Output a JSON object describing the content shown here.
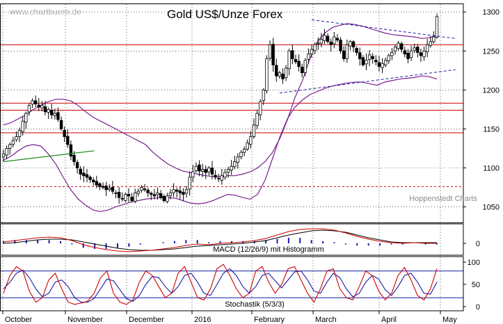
{
  "chart_data": {
    "type": "candlestick",
    "title": "Gold US$/Unze Forex",
    "watermark": "www.chartbuero.de",
    "source": "Hoppenstedt Charts",
    "x_ticks": [
      "October",
      "November",
      "December",
      "2016",
      "February",
      "March",
      "April",
      "May"
    ],
    "price_axis": {
      "ticks": [
        1050,
        1100,
        1150,
        1200,
        1250,
        1300
      ],
      "ylim": [
        1030,
        1310
      ]
    },
    "horizontal_lines": [
      {
        "value": 1258,
        "style": "solid",
        "color": "#cc0000"
      },
      {
        "value": 1183,
        "style": "solid",
        "color": "#cc0000"
      },
      {
        "value": 1174,
        "style": "solid",
        "color": "#cc0000"
      },
      {
        "value": 1145,
        "style": "solid",
        "color": "#cc0000"
      },
      {
        "value": 1076,
        "style": "dashed",
        "color": "#cc0000"
      }
    ],
    "closes": [
      1118,
      1125,
      1130,
      1135,
      1140,
      1148,
      1160,
      1170,
      1180,
      1186,
      1182,
      1178,
      1180,
      1172,
      1175,
      1168,
      1170,
      1162,
      1150,
      1140,
      1130,
      1115,
      1108,
      1100,
      1092,
      1090,
      1088,
      1085,
      1082,
      1078,
      1076,
      1075,
      1072,
      1074,
      1070,
      1068,
      1062,
      1060,
      1066,
      1064,
      1058,
      1068,
      1070,
      1075,
      1072,
      1068,
      1066,
      1064,
      1068,
      1062,
      1058,
      1064,
      1068,
      1072,
      1070,
      1068,
      1066,
      1072,
      1088,
      1095,
      1102,
      1096,
      1098,
      1094,
      1100,
      1092,
      1088,
      1086,
      1090,
      1094,
      1098,
      1102,
      1108,
      1114,
      1120,
      1124,
      1132,
      1140,
      1155,
      1170,
      1185,
      1200,
      1240,
      1258,
      1232,
      1218,
      1222,
      1214,
      1228,
      1250,
      1240,
      1236,
      1230,
      1222,
      1238,
      1246,
      1252,
      1258,
      1260,
      1265,
      1270,
      1262,
      1258,
      1268,
      1264,
      1250,
      1240,
      1258,
      1262,
      1255,
      1248,
      1240,
      1232,
      1238,
      1245,
      1240,
      1236,
      1230,
      1234,
      1238,
      1244,
      1248,
      1255,
      1260,
      1252,
      1246,
      1240,
      1250,
      1254,
      1248,
      1244,
      1250,
      1258,
      1262,
      1268,
      1294
    ],
    "bollinger_upper": [
      1155,
      1158,
      1163,
      1168,
      1175,
      1180,
      1185,
      1188,
      1188,
      1186,
      1180,
      1172,
      1165,
      1160,
      1155,
      1150,
      1145,
      1140,
      1135,
      1130,
      1120,
      1112,
      1105,
      1100,
      1096,
      1094,
      1092,
      1090,
      1089,
      1089,
      1090,
      1090,
      1092,
      1095,
      1100,
      1108,
      1120,
      1138,
      1162,
      1190,
      1212,
      1240,
      1262,
      1273,
      1280,
      1283,
      1285,
      1284,
      1282,
      1279,
      1276,
      1273,
      1271,
      1270,
      1269,
      1268,
      1266,
      1267,
      1270
    ],
    "bollinger_lower": [
      1110,
      1115,
      1122,
      1128,
      1130,
      1128,
      1118,
      1105,
      1088,
      1072,
      1060,
      1052,
      1046,
      1044,
      1046,
      1050,
      1053,
      1056,
      1058,
      1060,
      1061,
      1062,
      1062,
      1061,
      1058,
      1055,
      1054,
      1055,
      1058,
      1062,
      1066,
      1065,
      1062,
      1060,
      1066,
      1084,
      1112,
      1140,
      1163,
      1178,
      1187,
      1194,
      1198,
      1202,
      1205,
      1207,
      1209,
      1210,
      1210,
      1208,
      1206,
      1210,
      1212,
      1214,
      1215,
      1216,
      1218,
      1217,
      1214
    ],
    "trend_channel": {
      "upper": {
        "from": {
          "bar": 96,
          "value": 1290
        },
        "to": {
          "bar": 136,
          "value": 1266
        }
      },
      "lower": {
        "from": {
          "bar": 86,
          "value": 1196
        },
        "to": {
          "bar": 136,
          "value": 1226
        }
      }
    },
    "green_trendline": {
      "from": {
        "bar": 0,
        "value": 1108
      },
      "to": {
        "bar": 24,
        "value": 1122
      }
    },
    "macd": {
      "label": "MACD (12/26/9) mit Histogramm",
      "ticks": [
        0
      ],
      "macd": [
        2,
        4,
        6,
        8,
        9,
        8,
        4,
        -2,
        -6,
        -9,
        -11,
        -12,
        -11,
        -10,
        -8,
        -6,
        -3,
        -1,
        -2,
        0,
        1,
        2,
        4,
        7,
        12,
        17,
        20,
        21,
        21,
        19,
        15,
        10,
        6,
        3,
        1,
        0,
        1,
        0,
        0
      ],
      "signal": [
        0,
        1,
        3,
        5,
        6,
        6,
        5,
        2,
        -1,
        -4,
        -7,
        -9,
        -10,
        -10,
        -9,
        -8,
        -6,
        -4,
        -3,
        -2,
        -1,
        0,
        2,
        4,
        8,
        12,
        15,
        18,
        19,
        18,
        16,
        12,
        8,
        5,
        2,
        1,
        1,
        1,
        1
      ],
      "ylim": [
        -14,
        25
      ]
    },
    "stochastic": {
      "label": "Stochastik (5/3/3)",
      "ticks": [
        0,
        50,
        100
      ],
      "reference_lines": [
        20,
        80
      ],
      "k": [
        30,
        70,
        90,
        80,
        35,
        10,
        20,
        60,
        75,
        40,
        10,
        5,
        8,
        12,
        30,
        65,
        80,
        30,
        10,
        5,
        15,
        55,
        80,
        70,
        45,
        20,
        30,
        75,
        90,
        55,
        20,
        15,
        40,
        85,
        95,
        70,
        40,
        20,
        30,
        80,
        90,
        55,
        30,
        50,
        85,
        90,
        60,
        30,
        10,
        40,
        80,
        85,
        40,
        20,
        15,
        45,
        80,
        70,
        35,
        15,
        30,
        70,
        88,
        60,
        25,
        15,
        40,
        85
      ],
      "d": [
        40,
        55,
        75,
        82,
        65,
        40,
        22,
        30,
        55,
        60,
        45,
        20,
        10,
        10,
        18,
        40,
        62,
        58,
        38,
        18,
        12,
        25,
        50,
        68,
        65,
        45,
        30,
        45,
        70,
        75,
        55,
        30,
        25,
        50,
        75,
        85,
        70,
        45,
        30,
        45,
        70,
        75,
        58,
        42,
        60,
        78,
        80,
        60,
        35,
        30,
        55,
        75,
        65,
        40,
        22,
        30,
        55,
        70,
        62,
        38,
        25,
        45,
        70,
        75,
        55,
        30,
        28,
        55
      ]
    },
    "grid": true
  }
}
